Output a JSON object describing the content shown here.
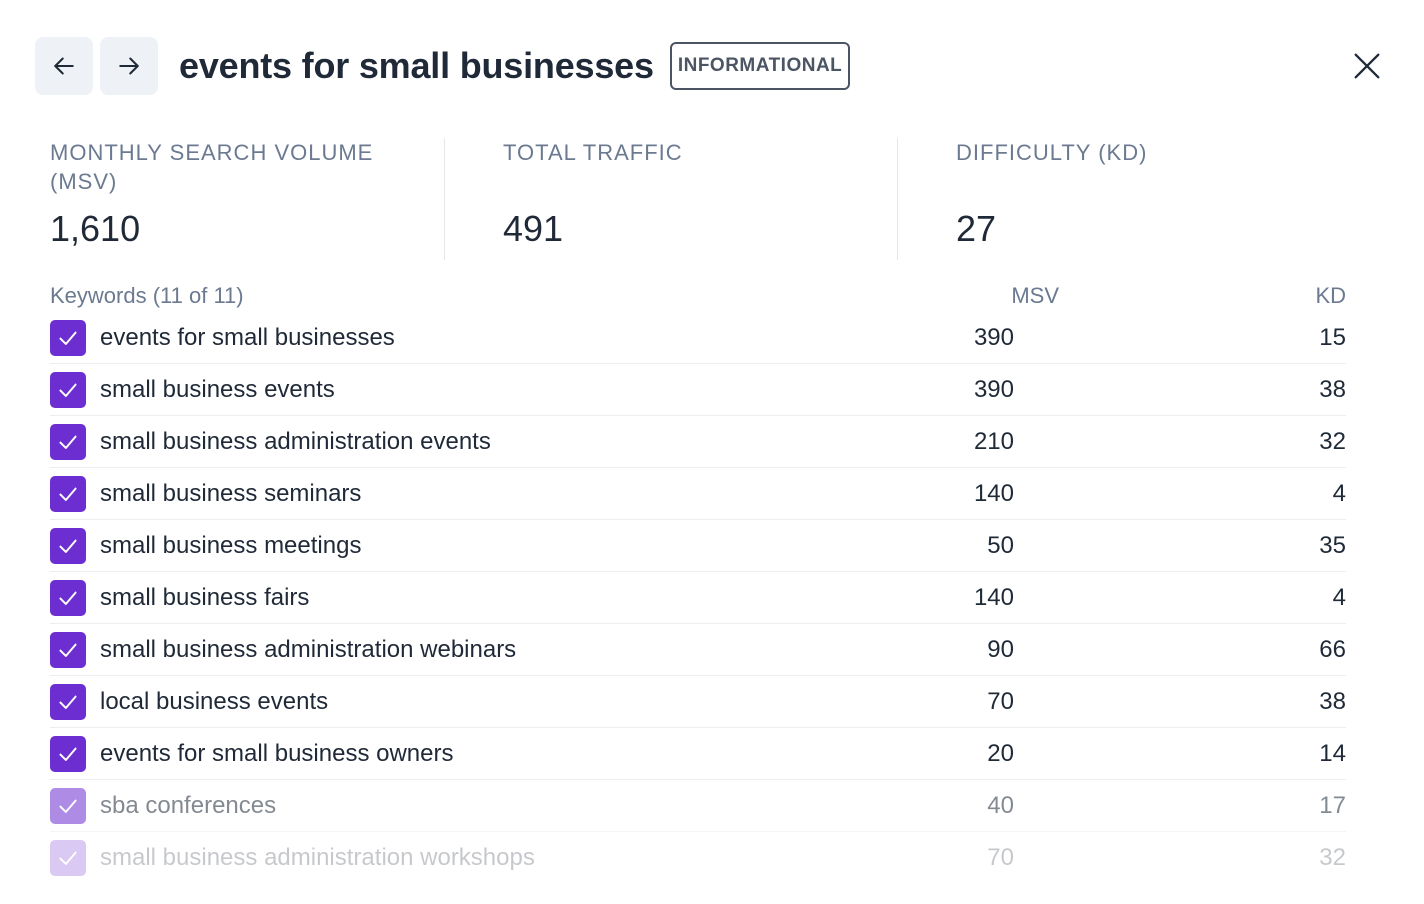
{
  "header": {
    "title": "events for small businesses",
    "badge": "INFORMATIONAL",
    "back_icon": "arrow-left-icon",
    "forward_icon": "arrow-right-icon",
    "close_icon": "close-icon"
  },
  "metrics": [
    {
      "label": "MONTHLY SEARCH VOLUME (MSV)",
      "value": "1,610"
    },
    {
      "label": "TOTAL TRAFFIC",
      "value": "491"
    },
    {
      "label": "DIFFICULTY (KD)",
      "value": "27"
    }
  ],
  "table": {
    "heading": "Keywords (11 of 11)",
    "col_msv": "MSV",
    "col_kd": "KD",
    "rows": [
      {
        "keyword": "events for small businesses",
        "msv": "390",
        "kd": "15",
        "checked": true
      },
      {
        "keyword": "small business events",
        "msv": "390",
        "kd": "38",
        "checked": true
      },
      {
        "keyword": "small business administration events",
        "msv": "210",
        "kd": "32",
        "checked": true
      },
      {
        "keyword": "small business seminars",
        "msv": "140",
        "kd": "4",
        "checked": true
      },
      {
        "keyword": "small business meetings",
        "msv": "50",
        "kd": "35",
        "checked": true
      },
      {
        "keyword": "small business fairs",
        "msv": "140",
        "kd": "4",
        "checked": true
      },
      {
        "keyword": "small business administration webinars",
        "msv": "90",
        "kd": "66",
        "checked": true
      },
      {
        "keyword": "local business events",
        "msv": "70",
        "kd": "38",
        "checked": true
      },
      {
        "keyword": "events for small business owners",
        "msv": "20",
        "kd": "14",
        "checked": true
      },
      {
        "keyword": "sba conferences",
        "msv": "40",
        "kd": "17",
        "checked": true
      },
      {
        "keyword": "small business administration workshops",
        "msv": "70",
        "kd": "32",
        "checked": true
      }
    ]
  },
  "colors": {
    "accent": "#6d2ed1",
    "text": "#1f2937",
    "muted": "#6b7a90"
  }
}
